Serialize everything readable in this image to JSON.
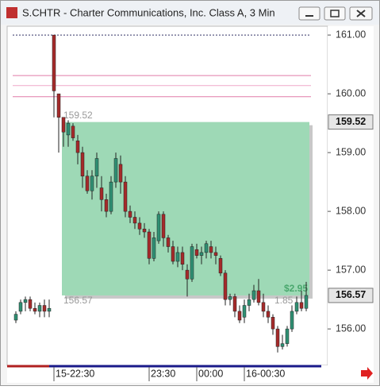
{
  "window_title": "S.CHTR - Charter Communications, Inc. Class A, 3 Min",
  "chart_data": {
    "type": "candlestick",
    "categories": [
      null,
      null,
      null,
      null,
      null,
      null,
      null,
      null,
      "15-22:30",
      null,
      null,
      null,
      null,
      null,
      null,
      null,
      null,
      null,
      null,
      null,
      null,
      null,
      null,
      null,
      null,
      null,
      null,
      null,
      "23:30",
      null,
      null,
      null,
      null,
      null,
      null,
      null,
      null,
      null,
      "00:00",
      null,
      null,
      null,
      null,
      null,
      null,
      null,
      null,
      null,
      "16-00:30",
      null,
      null,
      null,
      null,
      null,
      null,
      null,
      null,
      null,
      null,
      null,
      null,
      null
    ],
    "open": [
      156.15,
      156.3,
      156.45,
      156.5,
      156.35,
      156.3,
      156.4,
      156.3,
      161.0,
      160.0,
      159.6,
      159.3,
      159.45,
      159.2,
      159.0,
      158.6,
      158.35,
      158.6,
      158.4,
      158.2,
      158.0,
      158.5,
      158.8,
      158.5,
      158.0,
      157.9,
      157.8,
      157.7,
      157.65,
      157.2,
      157.5,
      157.95,
      157.55,
      157.4,
      157.15,
      157.3,
      157.0,
      156.85,
      157.35,
      157.25,
      157.3,
      157.4,
      157.3,
      157.2,
      156.95,
      156.5,
      156.55,
      156.3,
      156.2,
      156.4,
      156.5,
      156.65,
      156.45,
      156.3,
      156.2,
      156.0,
      155.7,
      155.75,
      156.0,
      156.3,
      156.45,
      156.35
    ],
    "high": [
      156.3,
      156.5,
      156.55,
      156.55,
      156.45,
      156.45,
      156.5,
      156.5,
      161.0,
      160.0,
      159.6,
      159.55,
      159.5,
      159.3,
      159.1,
      158.7,
      158.7,
      159.0,
      158.6,
      158.3,
      158.6,
      159.0,
      158.95,
      158.6,
      158.1,
      158.0,
      157.9,
      157.8,
      157.7,
      157.65,
      158.0,
      158.0,
      157.6,
      157.5,
      157.4,
      157.4,
      157.1,
      157.45,
      157.45,
      157.4,
      157.5,
      157.5,
      157.4,
      157.25,
      157.0,
      156.6,
      156.6,
      156.4,
      156.5,
      156.6,
      156.75,
      156.85,
      156.6,
      156.4,
      156.25,
      156.05,
      155.9,
      156.05,
      156.4,
      156.55,
      156.65,
      156.8
    ],
    "low": [
      156.1,
      156.25,
      156.3,
      156.3,
      156.25,
      156.2,
      156.2,
      156.2,
      159.6,
      159.0,
      159.1,
      159.1,
      159.2,
      158.8,
      158.4,
      158.3,
      158.2,
      158.4,
      158.0,
      157.9,
      157.95,
      158.4,
      158.3,
      157.9,
      157.8,
      157.7,
      157.6,
      157.55,
      157.1,
      157.15,
      157.45,
      157.4,
      157.3,
      157.1,
      157.05,
      157.0,
      156.55,
      156.8,
      157.2,
      157.1,
      157.2,
      157.2,
      157.1,
      156.9,
      156.4,
      156.4,
      156.2,
      156.1,
      156.1,
      156.3,
      156.45,
      156.4,
      156.2,
      156.1,
      155.9,
      155.6,
      155.65,
      155.7,
      155.95,
      156.25,
      156.3,
      156.3
    ],
    "close": [
      156.25,
      156.45,
      156.5,
      156.35,
      156.3,
      156.4,
      156.3,
      156.35,
      160.05,
      159.6,
      159.35,
      159.5,
      159.25,
      159.0,
      158.6,
      158.35,
      158.6,
      158.9,
      158.2,
      158.0,
      158.5,
      158.9,
      158.5,
      158.0,
      157.9,
      157.8,
      157.7,
      157.65,
      157.2,
      157.55,
      157.95,
      157.55,
      157.4,
      157.15,
      157.3,
      157.1,
      156.85,
      157.4,
      157.25,
      157.3,
      157.45,
      157.3,
      157.25,
      156.95,
      156.5,
      156.55,
      156.3,
      156.15,
      156.4,
      156.5,
      156.65,
      156.45,
      156.3,
      156.2,
      156.0,
      155.7,
      155.75,
      156.0,
      156.3,
      156.45,
      156.35,
      156.57
    ],
    "up_color": "#2f8f73",
    "down_color": "#a52a2a",
    "ylim": [
      155.38,
      161.15
    ],
    "yticks": [
      {
        "value": 156,
        "label": "156.00"
      },
      {
        "value": 157,
        "label": "157.00"
      },
      {
        "value": 158,
        "label": "158.00"
      },
      {
        "value": 159,
        "label": "159.00"
      },
      {
        "value": 160,
        "label": "160.00"
      },
      {
        "value": 161,
        "label": "161.00"
      }
    ],
    "levels": [
      {
        "value": 161.0,
        "color": "#333366"
      },
      {
        "value": 160.31,
        "color": "#e07aa8"
      },
      {
        "value": 160.14,
        "color": "#f0a8c8"
      },
      {
        "value": 159.95,
        "color": "#e07aa8"
      }
    ],
    "position": {
      "entry": 159.52,
      "current": 156.57,
      "profit": "$2.95",
      "percent": "1.85",
      "color": "#9ed9b6"
    }
  }
}
